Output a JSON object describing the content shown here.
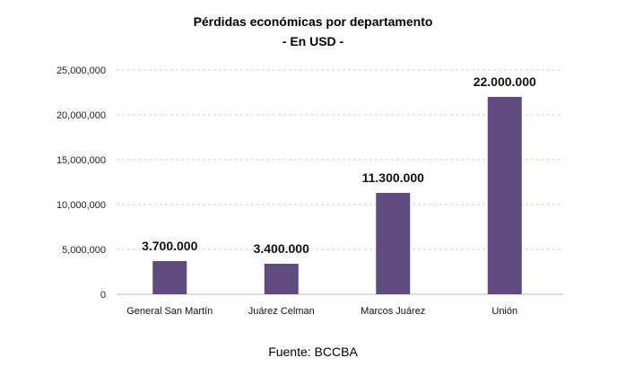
{
  "chart_data": {
    "type": "bar",
    "title": "Pérdidas económicas por departamento",
    "subtitle": "- En USD -",
    "categories": [
      "General San Martín",
      "Juárez Celman",
      "Marcos Juárez",
      "Unión"
    ],
    "values": [
      3700000,
      3400000,
      11300000,
      22000000
    ],
    "data_labels": [
      "3.700.000",
      "3.400.000",
      "11.300.000",
      "22.000.000"
    ],
    "ylim": [
      0,
      25000000
    ],
    "yticks": [
      0,
      5000000,
      10000000,
      15000000,
      20000000,
      25000000
    ],
    "ytick_labels": [
      "0",
      "5,000,000",
      "10,000,000",
      "15,000,000",
      "20,000,000",
      "25,000,000"
    ],
    "grid": true,
    "bar_color": "#5f4b7d",
    "source": "Fuente: BCCBA"
  }
}
